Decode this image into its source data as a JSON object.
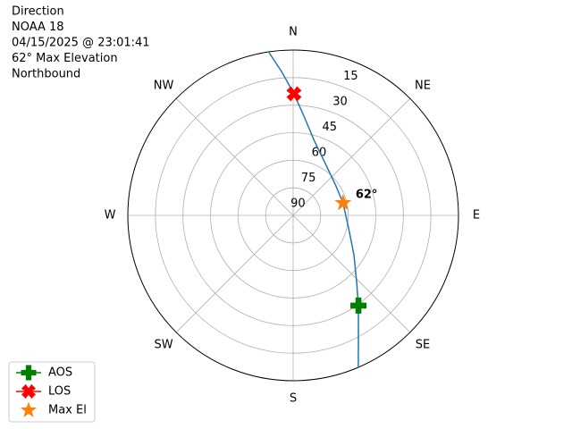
{
  "chart_data": {
    "type": "polar",
    "title_lines": [
      "Direction",
      "NOAA 18",
      "04/15/2025 @ 23:01:41",
      "62° Max Elevation",
      "Northbound"
    ],
    "theta_zero": "N",
    "theta_direction": "clockwise",
    "rlim": [
      90,
      0
    ],
    "rticks": [
      15,
      30,
      45,
      60,
      75,
      90
    ],
    "thetaticks": [
      {
        "value": 0,
        "label": "N"
      },
      {
        "value": 45,
        "label": "NE"
      },
      {
        "value": 90,
        "label": "E"
      },
      {
        "value": 135,
        "label": "SE"
      },
      {
        "value": 180,
        "label": "S"
      },
      {
        "value": 225,
        "label": "SW"
      },
      {
        "value": 270,
        "label": "W"
      },
      {
        "value": 315,
        "label": "NW"
      }
    ],
    "grid": true,
    "legend": "lower left",
    "track": {
      "color": "#1f77b4",
      "theta": [
        351.6,
        355.4,
        0.4,
        6.2,
        16.1,
        33.5,
        55.5,
        76,
        102.7,
        122.9,
        136.2,
        144.1,
        152.3,
        156.8
      ],
      "r": [
        0.5,
        11.4,
        23.8,
        35.7,
        48.0,
        57.4,
        61.7,
        62,
        59.1,
        50.6,
        40.1,
        29.4,
        13.6,
        0
      ]
    },
    "series": [
      {
        "name": "AOS",
        "color": "#008000",
        "marker": "plus",
        "theta": [
          144.1
        ],
        "r": [
          29.4
        ]
      },
      {
        "name": "LOS",
        "color": "#ff0000",
        "marker": "x",
        "theta": [
          0.4
        ],
        "r": [
          23.8
        ]
      },
      {
        "name": "Max El",
        "color": "#ff7f0e",
        "marker": "star",
        "theta": [
          76
        ],
        "r": [
          62
        ]
      }
    ],
    "annotation": {
      "text": "62°"
    }
  }
}
